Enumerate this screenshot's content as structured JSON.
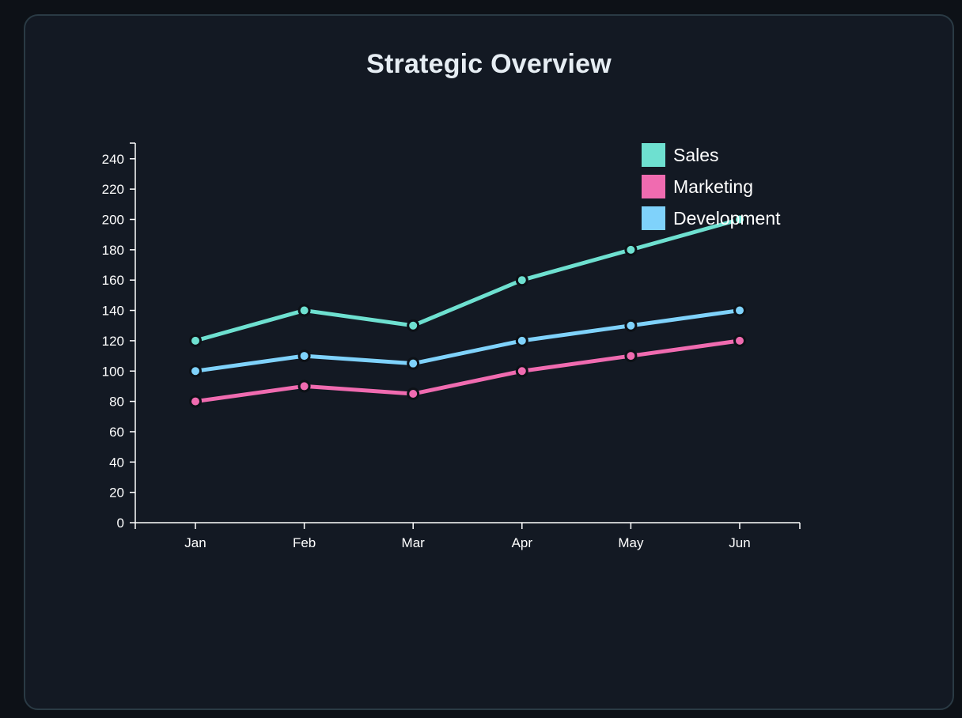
{
  "page": {
    "title": "Strategic Overview"
  },
  "colors": {
    "background": "#0d1117",
    "card": "#131923",
    "axis": "#ffffff",
    "point_stroke": "#0d1117"
  },
  "chart_data": {
    "type": "line",
    "title": "Strategic Overview",
    "xlabel": "",
    "ylabel": "",
    "categories": [
      "Jan",
      "Feb",
      "Mar",
      "Apr",
      "May",
      "Jun"
    ],
    "ylim": [
      0,
      250
    ],
    "yticks": [
      0,
      20,
      40,
      60,
      80,
      100,
      120,
      140,
      160,
      180,
      200,
      220,
      240
    ],
    "grid": false,
    "legend_position": "top-right",
    "series": [
      {
        "name": "Sales",
        "color": "#6ee0d0",
        "values": [
          120,
          140,
          130,
          160,
          180,
          200
        ]
      },
      {
        "name": "Marketing",
        "color": "#f06bb0",
        "values": [
          80,
          90,
          85,
          100,
          110,
          120
        ]
      },
      {
        "name": "Development",
        "color": "#7fd2fb",
        "values": [
          100,
          110,
          105,
          120,
          130,
          140
        ]
      }
    ]
  }
}
